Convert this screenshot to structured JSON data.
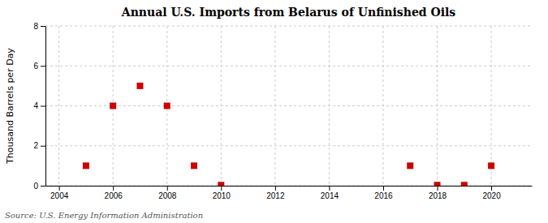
{
  "chart_data": {
    "type": "scatter",
    "title": "Annual U.S. Imports from Belarus of Unfinished Oils",
    "ylabel": "Thousand Barrels per Day",
    "annotations": [
      "Source: U.S. Energy Information Administration"
    ],
    "x": [
      2005,
      2006,
      2007,
      2008,
      2009,
      2010,
      2017,
      2018,
      2019,
      2020
    ],
    "values": [
      1,
      4,
      5,
      4,
      1,
      0.03,
      1,
      0.03,
      0.03,
      1
    ],
    "color": "#cc0000",
    "marker": "square",
    "xlim": [
      2003.5,
      2021.5
    ],
    "ylim": [
      0,
      8
    ],
    "xticks": [
      2004,
      2006,
      2008,
      2010,
      2012,
      2014,
      2016,
      2018,
      2020
    ],
    "yticks": [
      0,
      2,
      4,
      6,
      8
    ],
    "grid": true
  }
}
